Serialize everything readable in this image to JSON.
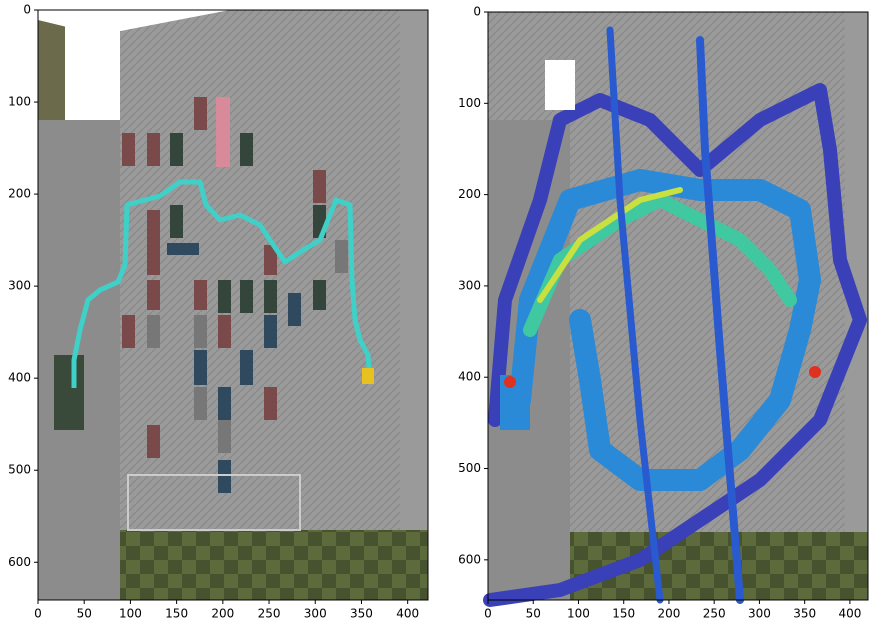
{
  "chart_data": [
    {
      "type": "image",
      "xlim": [
        0,
        422
      ],
      "ylim": [
        641,
        0
      ],
      "xticks": [
        0,
        50,
        100,
        150,
        200,
        250,
        300,
        350,
        400
      ],
      "yticks": [
        0,
        100,
        200,
        300,
        400,
        500,
        600
      ]
    },
    {
      "type": "image",
      "xlim": [
        0,
        420
      ],
      "ylim": [
        644,
        0
      ],
      "xticks": [
        0,
        50,
        100,
        150,
        200,
        250,
        300,
        350,
        400
      ],
      "yticks": [
        0,
        100,
        200,
        300,
        400,
        500,
        600
      ]
    }
  ]
}
